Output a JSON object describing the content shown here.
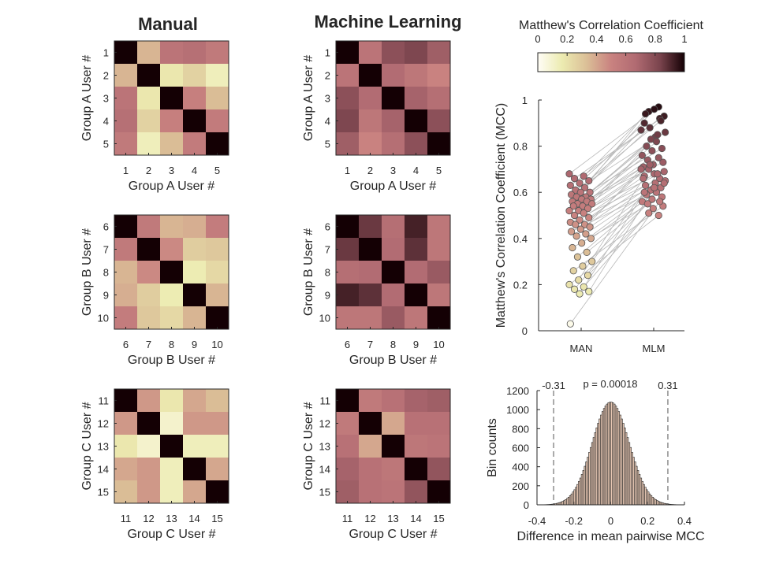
{
  "figure": {
    "col_titles": [
      "Manual",
      "Machine Learning"
    ]
  },
  "colormap": {
    "label": "Matthew's Correlation Coefficient",
    "ticks": [
      "0",
      "0.2",
      "0.4",
      "0.6",
      "0.8",
      "1"
    ],
    "tick_values": [
      0,
      0.2,
      0.4,
      0.6,
      0.8,
      1
    ],
    "stops": [
      "#fffdf6",
      "#ecebb0",
      "#dbbf97",
      "#c98280",
      "#b16b72",
      "#7a444d",
      "#140004"
    ]
  },
  "chart_data": [
    {
      "type": "heatmap",
      "id": "manual-A",
      "column": "Manual",
      "group": "A",
      "xlabel": "Group A User #",
      "ylabel": "Group A User #",
      "labels": [
        "1",
        "2",
        "3",
        "4",
        "5"
      ],
      "matrix": [
        [
          1,
          0.36,
          0.6,
          0.63,
          0.56
        ],
        [
          0.36,
          1,
          0.18,
          0.26,
          0.14
        ],
        [
          0.6,
          0.18,
          1,
          0.52,
          0.34
        ],
        [
          0.63,
          0.26,
          0.52,
          1,
          0.55
        ],
        [
          0.56,
          0.14,
          0.34,
          0.55,
          1
        ]
      ]
    },
    {
      "type": "heatmap",
      "id": "ml-A",
      "column": "Machine Learning",
      "group": "A",
      "xlabel": "Group A User #",
      "ylabel": "Group A User #",
      "labels": [
        "1",
        "2",
        "3",
        "4",
        "5"
      ],
      "matrix": [
        [
          1,
          0.6,
          0.78,
          0.82,
          0.72
        ],
        [
          0.6,
          1,
          0.66,
          0.58,
          0.5
        ],
        [
          0.78,
          0.66,
          1,
          0.7,
          0.64
        ],
        [
          0.82,
          0.58,
          0.7,
          1,
          0.78
        ],
        [
          0.72,
          0.5,
          0.64,
          0.78,
          1
        ]
      ]
    },
    {
      "type": "heatmap",
      "id": "manual-B",
      "column": "Manual",
      "group": "B",
      "xlabel": "Group B User #",
      "ylabel": "Group B User #",
      "labels": [
        "6",
        "7",
        "8",
        "9",
        "10"
      ],
      "matrix": [
        [
          1,
          0.56,
          0.36,
          0.38,
          0.54
        ],
        [
          0.56,
          1,
          0.48,
          0.28,
          0.3
        ],
        [
          0.36,
          0.48,
          1,
          0.16,
          0.24
        ],
        [
          0.38,
          0.28,
          0.16,
          1,
          0.36
        ],
        [
          0.54,
          0.3,
          0.24,
          0.36,
          1
        ]
      ]
    },
    {
      "type": "heatmap",
      "id": "ml-B",
      "column": "Machine Learning",
      "group": "B",
      "xlabel": "Group B User #",
      "ylabel": "Group B User #",
      "labels": [
        "6",
        "7",
        "8",
        "9",
        "10"
      ],
      "matrix": [
        [
          1,
          0.86,
          0.64,
          0.92,
          0.58
        ],
        [
          0.86,
          1,
          0.66,
          0.88,
          0.58
        ],
        [
          0.64,
          0.66,
          1,
          0.66,
          0.74
        ],
        [
          0.92,
          0.88,
          0.66,
          1,
          0.58
        ],
        [
          0.58,
          0.58,
          0.74,
          0.58,
          1
        ]
      ]
    },
    {
      "type": "heatmap",
      "id": "manual-C",
      "column": "Manual",
      "group": "C",
      "xlabel": "Group C User #",
      "ylabel": "Group C User #",
      "labels": [
        "11",
        "12",
        "13",
        "14",
        "15"
      ],
      "matrix": [
        [
          1,
          0.44,
          0.18,
          0.4,
          0.34
        ],
        [
          0.44,
          1,
          0.1,
          0.44,
          0.44
        ],
        [
          0.18,
          0.1,
          1,
          0.14,
          0.14
        ],
        [
          0.4,
          0.44,
          0.14,
          1,
          0.4
        ],
        [
          0.34,
          0.44,
          0.14,
          0.4,
          1
        ]
      ]
    },
    {
      "type": "heatmap",
      "id": "ml-C",
      "column": "Machine Learning",
      "group": "C",
      "xlabel": "Group C User #",
      "ylabel": "Group C User #",
      "labels": [
        "11",
        "12",
        "13",
        "14",
        "15"
      ],
      "matrix": [
        [
          1,
          0.56,
          0.62,
          0.7,
          0.72
        ],
        [
          0.56,
          1,
          0.4,
          0.62,
          0.62
        ],
        [
          0.62,
          0.4,
          1,
          0.58,
          0.6
        ],
        [
          0.7,
          0.62,
          0.58,
          1,
          0.76
        ],
        [
          0.72,
          0.62,
          0.6,
          0.76,
          1
        ]
      ]
    },
    {
      "type": "scatter",
      "id": "paired-mcc",
      "ylabel": "Matthew's Correlation Coefficient (MCC)",
      "categories": [
        "MAN",
        "MLM"
      ],
      "ylim": [
        0,
        1
      ],
      "yticks": [
        0,
        0.2,
        0.4,
        0.6,
        0.8,
        1
      ],
      "yticklabels": [
        "0",
        "0.2",
        "0.4",
        "0.6",
        "0.8",
        "1"
      ],
      "pairs": [
        [
          0.68,
          0.97
        ],
        [
          0.67,
          0.95
        ],
        [
          0.66,
          0.93
        ],
        [
          0.65,
          0.96
        ],
        [
          0.64,
          0.9
        ],
        [
          0.63,
          0.92
        ],
        [
          0.62,
          0.88
        ],
        [
          0.61,
          0.86
        ],
        [
          0.6,
          0.84
        ],
        [
          0.6,
          0.94
        ],
        [
          0.59,
          0.91
        ],
        [
          0.58,
          0.83
        ],
        [
          0.58,
          0.87
        ],
        [
          0.57,
          0.82
        ],
        [
          0.57,
          0.8
        ],
        [
          0.56,
          0.79
        ],
        [
          0.56,
          0.78
        ],
        [
          0.55,
          0.76
        ],
        [
          0.55,
          0.85
        ],
        [
          0.54,
          0.74
        ],
        [
          0.54,
          0.73
        ],
        [
          0.53,
          0.72
        ],
        [
          0.52,
          0.71
        ],
        [
          0.52,
          0.75
        ],
        [
          0.51,
          0.7
        ],
        [
          0.5,
          0.69
        ],
        [
          0.49,
          0.68
        ],
        [
          0.48,
          0.67
        ],
        [
          0.47,
          0.66
        ],
        [
          0.46,
          0.72
        ],
        [
          0.46,
          0.65
        ],
        [
          0.45,
          0.64
        ],
        [
          0.44,
          0.63
        ],
        [
          0.43,
          0.62
        ],
        [
          0.42,
          0.61
        ],
        [
          0.41,
          0.7
        ],
        [
          0.4,
          0.6
        ],
        [
          0.38,
          0.59
        ],
        [
          0.36,
          0.58
        ],
        [
          0.34,
          0.57
        ],
        [
          0.32,
          0.56
        ],
        [
          0.3,
          0.68
        ],
        [
          0.28,
          0.55
        ],
        [
          0.26,
          0.54
        ],
        [
          0.24,
          0.53
        ],
        [
          0.22,
          0.66
        ],
        [
          0.2,
          0.5
        ],
        [
          0.19,
          0.51
        ],
        [
          0.18,
          0.64
        ],
        [
          0.17,
          0.62
        ],
        [
          0.16,
          0.6
        ],
        [
          0.03,
          0.56
        ]
      ]
    },
    {
      "type": "bar",
      "id": "permutation-hist",
      "xlabel": "Difference in mean pairwise MCC",
      "ylabel": "Bin counts",
      "xlim": [
        -0.4,
        0.4
      ],
      "ylim": [
        0,
        1200
      ],
      "xticks": [
        -0.4,
        -0.2,
        0,
        0.2,
        0.4
      ],
      "xticklabels": [
        "-0.4",
        "-0.2",
        "0",
        "0.2",
        "0.4"
      ],
      "yticks": [
        0,
        200,
        400,
        600,
        800,
        1000,
        1200
      ],
      "yticklabels": [
        "0",
        "200",
        "400",
        "600",
        "800",
        "1000",
        "1200"
      ],
      "distribution": {
        "mean": 0,
        "sd": 0.1,
        "peak_count": 1080
      },
      "bin_width": 0.008,
      "thresholds": [
        -0.31,
        0.31
      ],
      "threshold_labels": [
        "-0.31",
        "0.31"
      ],
      "annotation": "p = 0.00018"
    }
  ]
}
